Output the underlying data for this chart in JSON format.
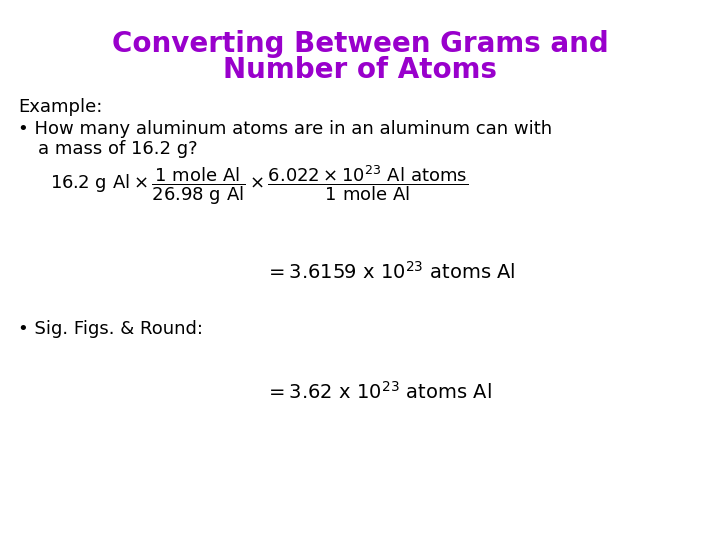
{
  "title_line1": "Converting Between Grams and",
  "title_line2": "Number of Atoms",
  "title_color": "#9900CC",
  "title_fontsize": 20,
  "title_fontweight": "bold",
  "background_color": "#ffffff",
  "body_fontsize": 13,
  "body_color": "#000000",
  "example_label": "Example:",
  "bullet1_line1": "How many aluminum atoms are in an aluminum can with",
  "bullet1_line2": "a mass of 16.2 g?",
  "bullet2": "Sig. Figs. & Round:",
  "formula_mathtext": "$16.2\\ \\mathrm{g\\ Al} \\times \\dfrac{1\\ \\mathrm{mole\\ Al}}{26.98\\ \\mathrm{g\\ Al}} \\times \\dfrac{6.022\\times10^{23}\\ \\mathrm{Al\\ atoms}}{1\\ \\mathrm{mole\\ Al}}$",
  "formula_fontsize": 13,
  "result1_pre": "= 3.6159 x 10",
  "result1_exp": "23",
  "result1_post": " atoms Al",
  "result2_pre": "= 3.62 x 10",
  "result2_exp": "23",
  "result2_post": " atoms Al"
}
